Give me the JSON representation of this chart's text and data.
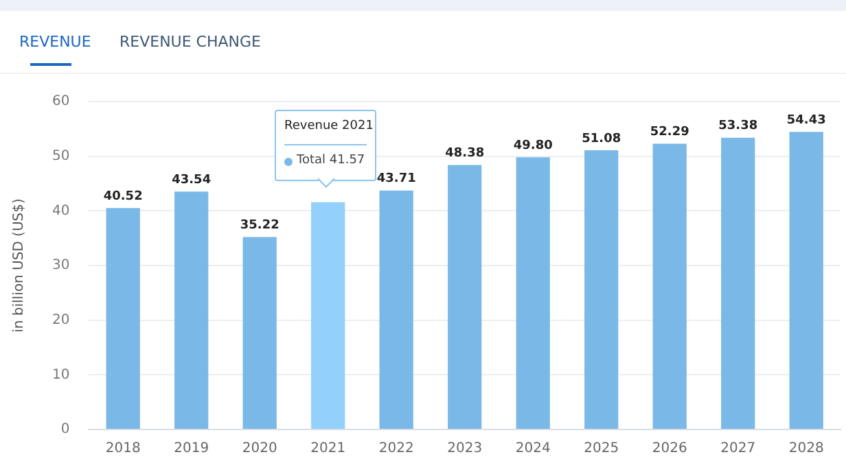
{
  "chart_data": {
    "type": "bar",
    "ylabel": "in billion USD (US$)",
    "categories": [
      "2018",
      "2019",
      "2020",
      "2021",
      "2022",
      "2023",
      "2024",
      "2025",
      "2026",
      "2027",
      "2028"
    ],
    "values": [
      40.52,
      43.54,
      35.22,
      41.57,
      43.71,
      48.38,
      49.8,
      51.08,
      52.29,
      53.38,
      54.43
    ],
    "colors": [
      "#7ab8e8",
      "#7ab8e8",
      "#7ab8e8",
      "#93d0fb",
      "#7ab8e8",
      "#7ab8e8",
      "#7ab8e8",
      "#7ab8e8",
      "#7ab8e8",
      "#7ab8e8",
      "#7ab8e8"
    ],
    "value_labels": [
      "40.52",
      "43.54",
      "35.22",
      null,
      "43.71",
      "48.38",
      "49.80",
      "51.08",
      "52.29",
      "53.38",
      "54.43"
    ],
    "ylim": [
      0,
      60
    ],
    "yticks": [
      0,
      10,
      20,
      30,
      40,
      50,
      60
    ],
    "grid": "y",
    "legend": false,
    "annotations": [
      "REVENUE",
      "REVENUE CHANGE",
      "Revenue 2021",
      "Total  41.57"
    ]
  }
}
